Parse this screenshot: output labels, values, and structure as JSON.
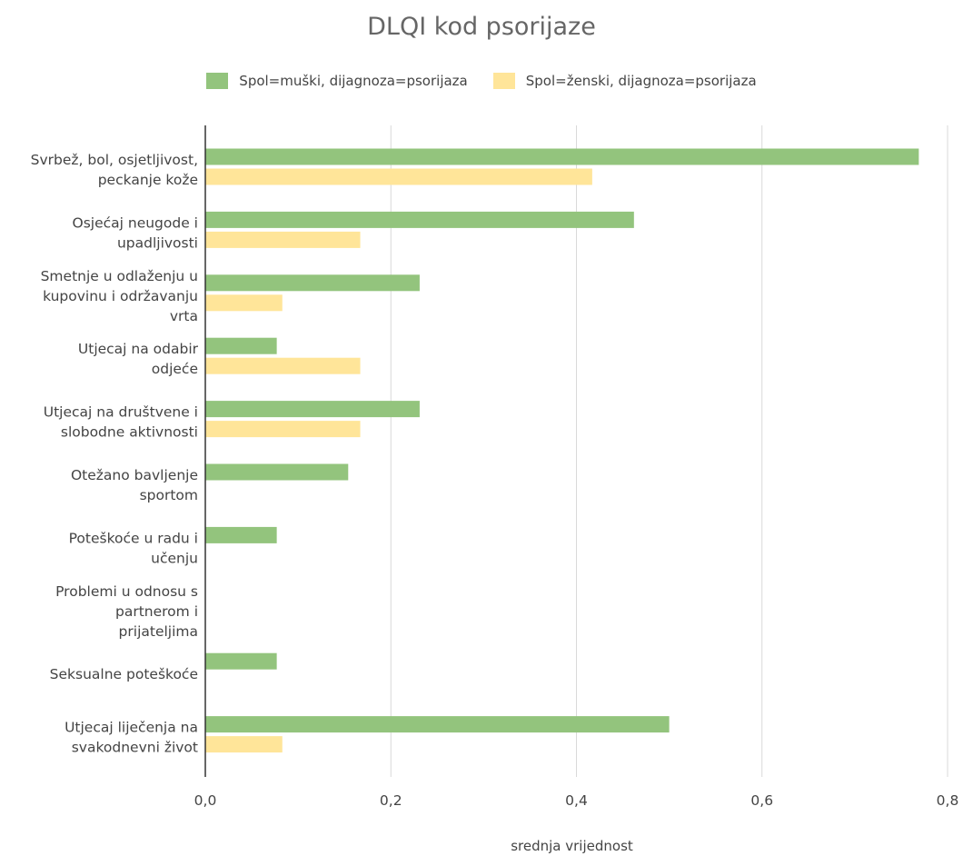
{
  "chart_data": {
    "type": "bar",
    "orientation": "horizontal",
    "title": "DLQI kod psorijaze",
    "xlabel": "srednja vrijednost",
    "ylabel": "",
    "xlim": [
      0,
      0.8
    ],
    "x_ticks": [
      "0,0",
      "0,2",
      "0,4",
      "0,6",
      "0,8"
    ],
    "grid": true,
    "legend_position": "top",
    "categories": [
      [
        "Svrbež, bol, osjetljivost,",
        "peckanje kože"
      ],
      [
        "Osjećaj neugode i",
        "upadljivosti"
      ],
      [
        "Smetnje u odlaženju u",
        "kupovinu i održavanju",
        "vrta"
      ],
      [
        "Utjecaj na odabir",
        "odjeće"
      ],
      [
        "Utjecaj na društvene i",
        "slobodne aktivnosti"
      ],
      [
        "Otežano bavljenje",
        "sportom"
      ],
      [
        "Poteškoće u radu i",
        "učenju"
      ],
      [
        "Problemi u odnosu s",
        "partnerom i",
        "prijateljima"
      ],
      [
        "Seksualne poteškoće"
      ],
      [
        "Utjecaj liječenja na",
        "svakodnevni život"
      ]
    ],
    "series": [
      {
        "name": "Spol=muški, dijagnoza=psorijaza",
        "color": "#93c47d",
        "values": [
          0.769,
          0.462,
          0.231,
          0.077,
          0.231,
          0.154,
          0.077,
          0,
          0.077,
          0.5
        ]
      },
      {
        "name": "Spol=ženski, dijagnoza=psorijaza",
        "color": "#ffe599",
        "values": [
          0.417,
          0.167,
          0.083,
          0.167,
          0.167,
          0,
          0,
          0,
          0,
          0.083
        ]
      }
    ]
  }
}
